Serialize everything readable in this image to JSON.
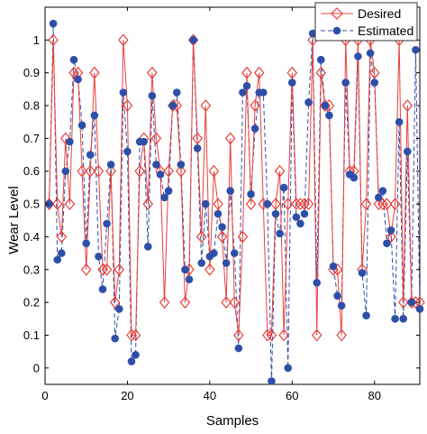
{
  "chart_data": {
    "type": "line",
    "xlabel": "Samples",
    "ylabel": "Wear Level",
    "xlim": [
      0,
      91
    ],
    "ylim": [
      -0.05,
      1.1
    ],
    "xticks": [
      "0",
      "20",
      "40",
      "60",
      "80"
    ],
    "yticks": [
      "0",
      "0.1",
      "0.2",
      "0.3",
      "0.4",
      "0.5",
      "0.6",
      "0.7",
      "0.8",
      "0.9",
      "1"
    ],
    "legend_position": "top-right",
    "grid": false,
    "x": [
      1,
      2,
      3,
      4,
      5,
      6,
      7,
      8,
      9,
      10,
      11,
      12,
      13,
      14,
      15,
      16,
      17,
      18,
      19,
      20,
      21,
      22,
      23,
      24,
      25,
      26,
      27,
      28,
      29,
      30,
      31,
      32,
      33,
      34,
      35,
      36,
      37,
      38,
      39,
      40,
      41,
      42,
      43,
      44,
      45,
      46,
      47,
      48,
      49,
      50,
      51,
      52,
      53,
      54,
      55,
      56,
      57,
      58,
      59,
      60,
      61,
      62,
      63,
      64,
      65,
      66,
      67,
      68,
      69,
      70,
      71,
      72,
      73,
      74,
      75,
      76,
      77,
      78,
      79,
      80,
      81,
      82,
      83,
      84,
      85,
      86,
      87,
      88,
      89,
      90,
      91
    ],
    "series": [
      {
        "name": "Desired",
        "color": "#e8403a",
        "marker": "diamond-open",
        "values": [
          0.5,
          1.0,
          0.5,
          0.4,
          0.7,
          0.5,
          0.9,
          0.9,
          0.6,
          0.3,
          0.6,
          0.9,
          0.6,
          0.3,
          0.3,
          0.6,
          0.2,
          0.3,
          1.0,
          0.8,
          0.1,
          0.1,
          0.6,
          0.7,
          0.5,
          0.9,
          0.7,
          0.6,
          0.2,
          0.6,
          0.8,
          0.8,
          0.6,
          0.2,
          0.3,
          1.0,
          0.7,
          0.4,
          0.8,
          0.3,
          0.6,
          0.5,
          0.4,
          0.2,
          0.7,
          0.2,
          0.1,
          0.4,
          0.9,
          0.5,
          0.8,
          0.9,
          0.5,
          0.1,
          0.1,
          0.5,
          0.6,
          0.1,
          0.5,
          0.9,
          0.5,
          0.5,
          0.5,
          0.5,
          1.0,
          0.1,
          0.9,
          0.8,
          0.8,
          0.3,
          0.3,
          0.1,
          1.0,
          0.6,
          0.6,
          1.0,
          0.3,
          0.5,
          1.0,
          0.9,
          0.5,
          0.5,
          0.5,
          0.4,
          0.5,
          1.0,
          0.2,
          0.8,
          0.2,
          0.2,
          0.2
        ]
      },
      {
        "name": "Estimated",
        "color": "#2e4fa8",
        "marker": "filled-circle",
        "values": [
          0.5,
          1.05,
          0.33,
          0.35,
          0.6,
          0.69,
          0.94,
          0.88,
          0.74,
          0.38,
          0.65,
          0.77,
          0.34,
          0.24,
          0.44,
          0.62,
          0.09,
          0.18,
          0.84,
          0.66,
          0.02,
          0.04,
          0.69,
          0.69,
          0.37,
          0.83,
          0.62,
          0.59,
          0.52,
          0.54,
          0.8,
          0.84,
          0.62,
          0.3,
          0.27,
          1.0,
          0.67,
          0.32,
          0.5,
          0.34,
          0.35,
          0.47,
          0.43,
          0.32,
          0.54,
          0.35,
          0.06,
          0.84,
          0.86,
          0.53,
          0.73,
          0.84,
          0.84,
          0.5,
          -0.04,
          0.47,
          0.41,
          0.55,
          0.0,
          0.87,
          0.46,
          0.44,
          0.47,
          0.81,
          1.02,
          0.26,
          0.94,
          0.8,
          0.77,
          0.31,
          0.22,
          0.19,
          0.87,
          0.59,
          0.58,
          0.95,
          0.29,
          0.16,
          0.96,
          0.87,
          0.52,
          0.54,
          0.38,
          0.42,
          0.15,
          0.75,
          0.15,
          0.66,
          0.2,
          0.97,
          0.18
        ]
      }
    ]
  }
}
